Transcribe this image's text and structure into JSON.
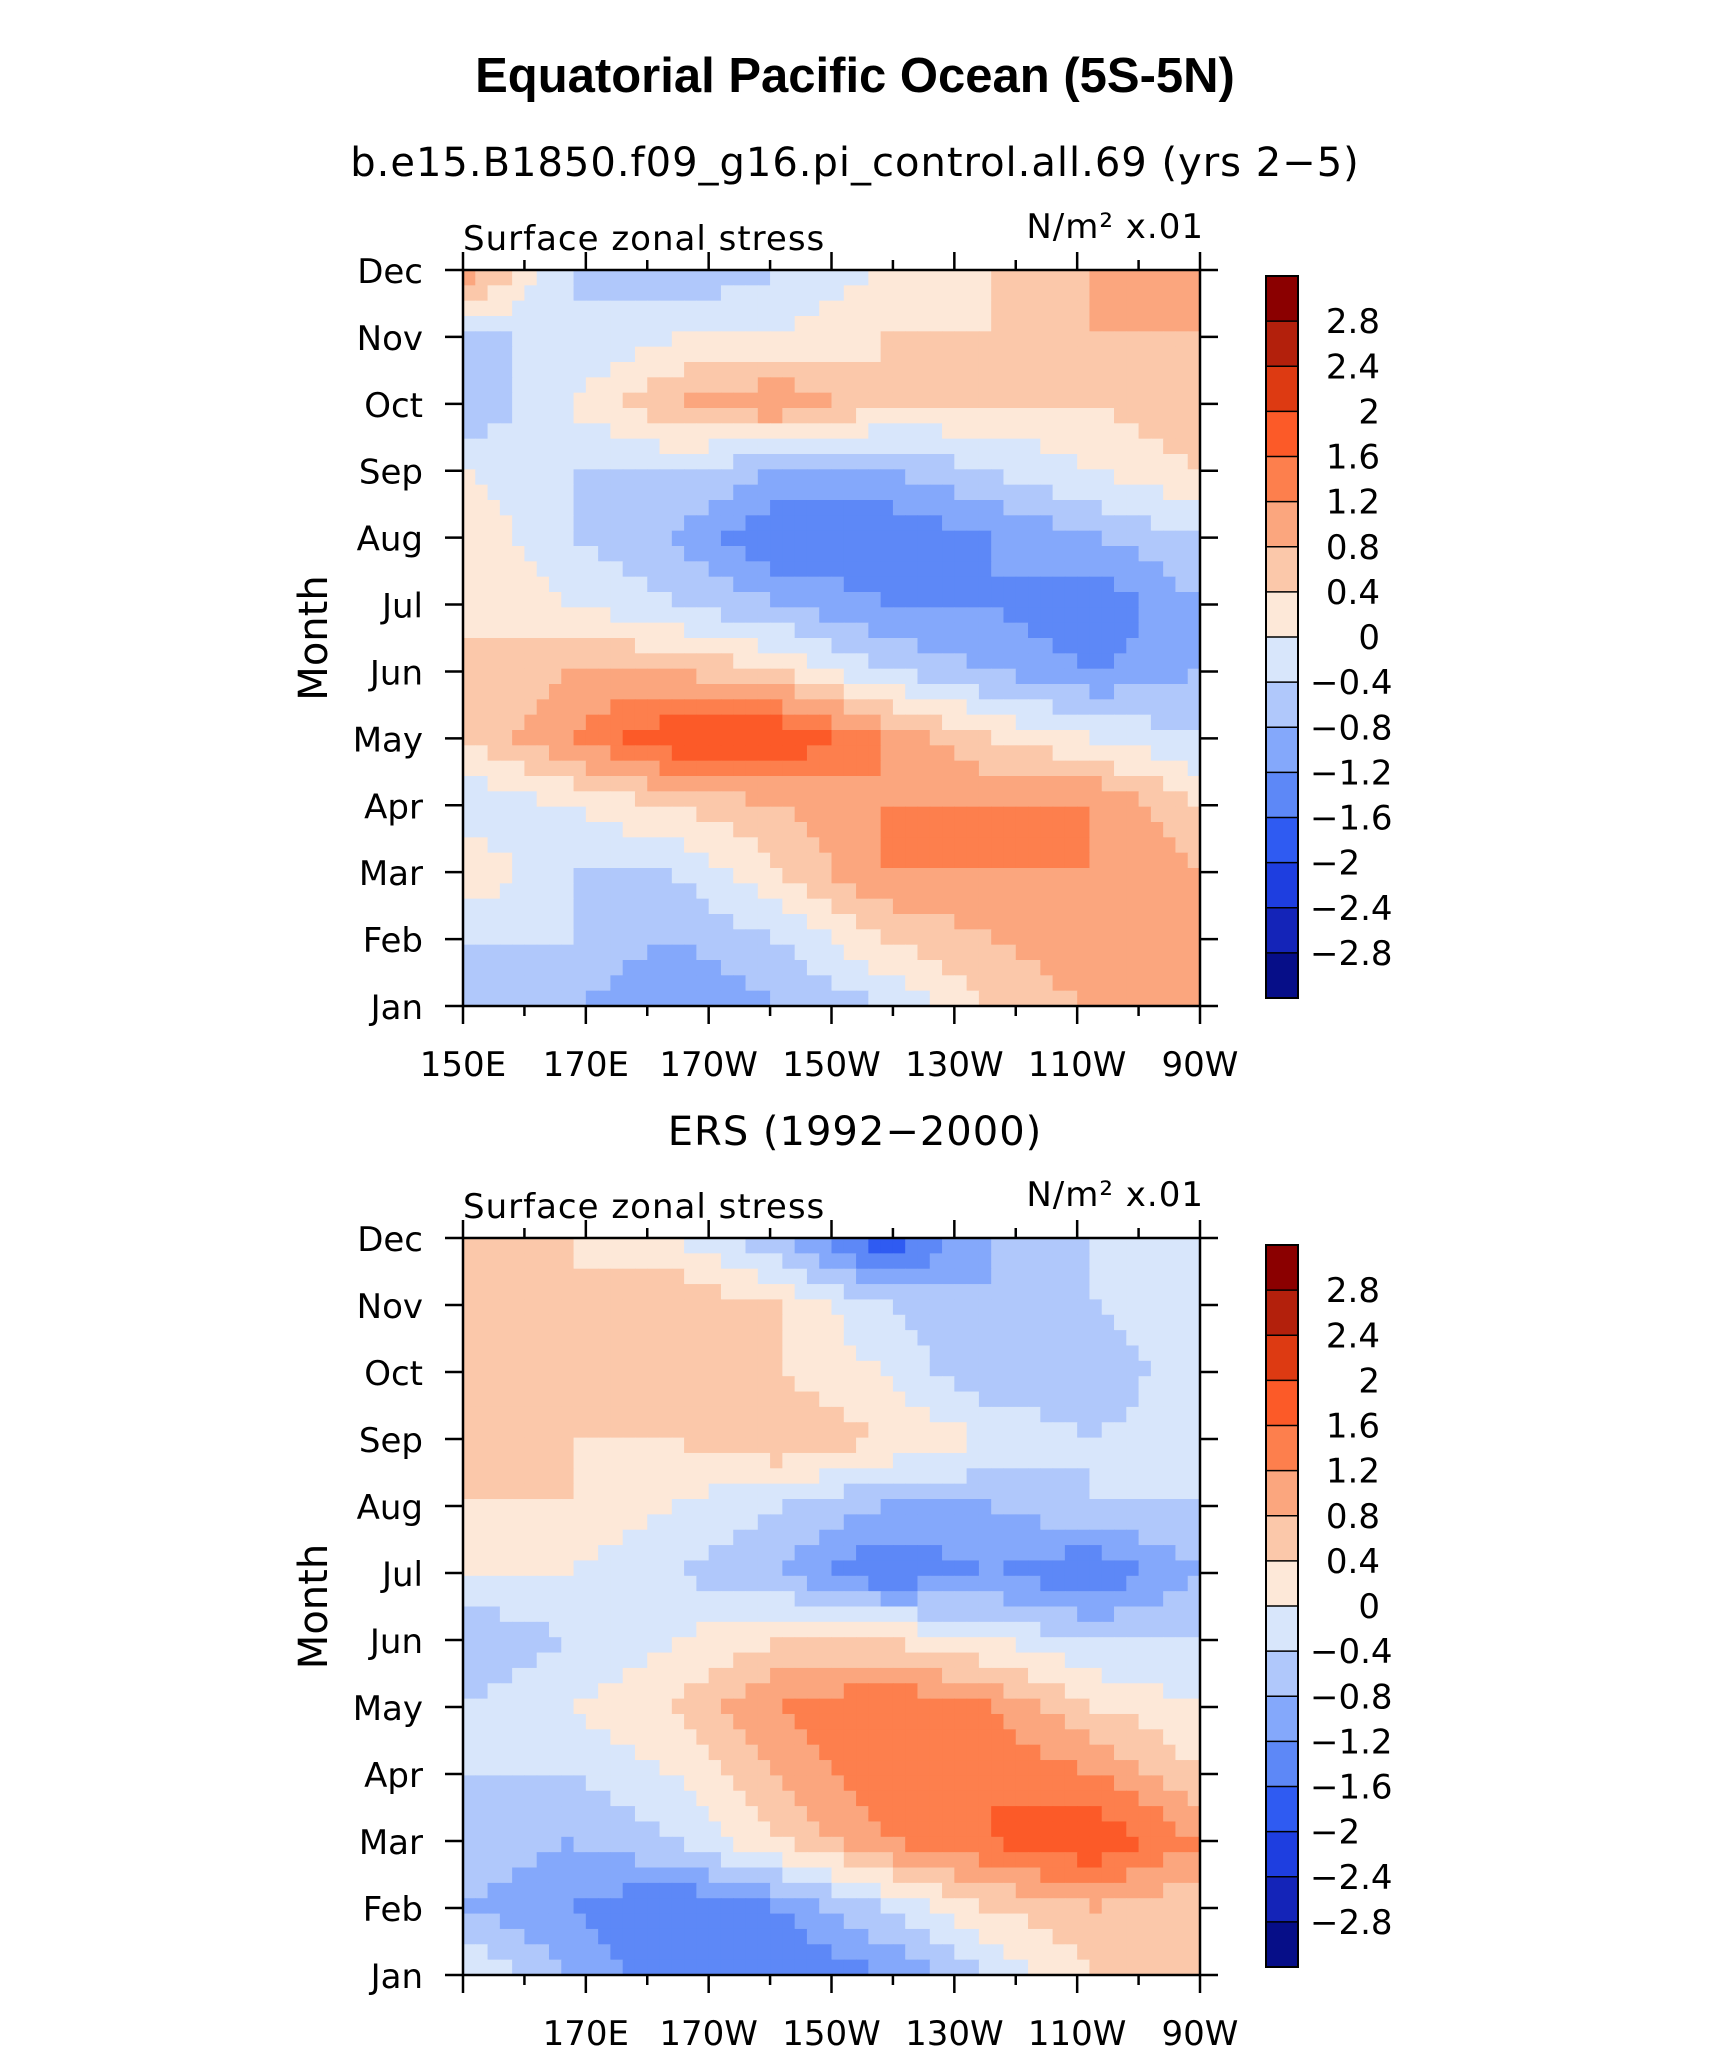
{
  "title": "Equatorial Pacific Ocean (5S-5N)",
  "chart_data": [
    {
      "type": "heatmap",
      "title": "b.e15.B1850.f09_g16.pi_control.all.69 (yrs 2−5)",
      "left_label": "Surface zonal stress",
      "right_label": "N/m² x.01",
      "xlabel": "",
      "ylabel": "Month",
      "x_ticks": [
        "150E",
        "170E",
        "170W",
        "150W",
        "130W",
        "110W",
        "90W"
      ],
      "y_ticks": [
        "Jan",
        "Feb",
        "Mar",
        "Apr",
        "May",
        "Jun",
        "Jul",
        "Aug",
        "Sep",
        "Oct",
        "Nov",
        "Dec"
      ],
      "lon_range": [
        150,
        270
      ],
      "colorbar_levels": [
        "2.8",
        "2.4",
        "2",
        "1.6",
        "1.2",
        "0.8",
        "0.4",
        "0",
        "−0.4",
        "−0.8",
        "−1.2",
        "−1.6",
        "−2",
        "−2.4",
        "−2.8"
      ],
      "z_approx": [
        [
          -0.4,
          -0.8,
          -1.2,
          -0.8,
          -0.4,
          0.4,
          0.8,
          0.8
        ],
        [
          -0.4,
          -0.4,
          -0.8,
          -0.4,
          0.4,
          0.8,
          1.2,
          0.8
        ],
        [
          0.4,
          -0.4,
          -0.4,
          0.4,
          1.2,
          1.2,
          1.2,
          0.8
        ],
        [
          -0.4,
          0.0,
          0.4,
          0.8,
          1.2,
          1.2,
          1.2,
          0.4
        ],
        [
          0.4,
          1.2,
          2.0,
          2.0,
          1.2,
          0.4,
          0.0,
          -0.4
        ],
        [
          0.4,
          0.8,
          0.8,
          0.4,
          -0.4,
          -0.8,
          -1.2,
          -0.8
        ],
        [
          0.4,
          0.0,
          -0.4,
          -0.8,
          -1.2,
          -1.2,
          -1.6,
          -0.8
        ],
        [
          0.4,
          -0.4,
          -0.8,
          -1.6,
          -1.6,
          -1.2,
          -0.8,
          -0.4
        ],
        [
          0.0,
          -0.4,
          -0.4,
          -0.8,
          -0.8,
          -0.4,
          0.0,
          0.4
        ],
        [
          -0.8,
          0.0,
          0.8,
          1.2,
          0.4,
          0.4,
          0.4,
          0.8
        ],
        [
          -0.4,
          -0.4,
          0.0,
          0.0,
          0.4,
          0.4,
          0.8,
          0.8
        ],
        [
          1.2,
          -0.4,
          -0.8,
          -0.4,
          0.0,
          0.4,
          0.8,
          0.8
        ]
      ]
    },
    {
      "type": "heatmap",
      "title": "ERS (1992−2000)",
      "left_label": "Surface zonal stress",
      "right_label": "N/m² x.01",
      "xlabel": "",
      "ylabel": "Month",
      "x_ticks": [
        "170E",
        "170W",
        "150W",
        "130W",
        "110W",
        "90W"
      ],
      "y_ticks": [
        "Jan",
        "Feb",
        "Mar",
        "Apr",
        "May",
        "Jun",
        "Jul",
        "Aug",
        "Sep",
        "Oct",
        "Nov",
        "Dec"
      ],
      "lon_range": [
        150,
        270
      ],
      "colorbar_levels": [
        "2.8",
        "2.4",
        "2",
        "1.6",
        "1.2",
        "0.8",
        "0.4",
        "0",
        "−0.4",
        "−0.8",
        "−1.2",
        "−1.6",
        "−2",
        "−2.4",
        "−2.8"
      ],
      "z_approx": [
        [
          0.0,
          -0.8,
          -1.6,
          -1.6,
          -1.2,
          -0.4,
          0.4,
          0.4
        ],
        [
          -0.8,
          -1.2,
          -1.6,
          -1.2,
          -0.4,
          0.4,
          0.8,
          0.4
        ],
        [
          -0.4,
          -0.8,
          -0.4,
          0.4,
          1.2,
          1.6,
          2.0,
          1.2
        ],
        [
          -0.4,
          -0.4,
          0.0,
          0.8,
          1.6,
          1.6,
          1.2,
          0.4
        ],
        [
          -0.4,
          0.0,
          0.4,
          1.2,
          1.6,
          1.2,
          0.4,
          0.0
        ],
        [
          -0.8,
          -0.4,
          0.0,
          0.4,
          0.4,
          0.0,
          -0.4,
          -0.4
        ],
        [
          0.0,
          0.0,
          -0.4,
          -0.8,
          -1.6,
          -1.2,
          -1.6,
          -0.8
        ],
        [
          0.4,
          0.4,
          0.0,
          -0.4,
          -0.8,
          -0.8,
          -0.4,
          -0.4
        ],
        [
          0.4,
          0.4,
          0.4,
          0.8,
          0.4,
          0.0,
          -0.4,
          0.0
        ],
        [
          0.4,
          0.4,
          0.4,
          0.4,
          0.0,
          -0.8,
          -0.8,
          0.0
        ],
        [
          0.4,
          0.4,
          0.8,
          0.4,
          -0.4,
          -0.8,
          -0.4,
          0.0
        ],
        [
          0.4,
          0.4,
          0.0,
          -0.8,
          -2.0,
          -0.8,
          -0.4,
          0.0
        ]
      ]
    }
  ],
  "colors": {
    "levels_high_to_low": [
      "#8b0000",
      "#b3200c",
      "#dd3a12",
      "#fc5a28",
      "#fd7f4d",
      "#fba67e",
      "#fbc8aa",
      "#fde8d8",
      "#d8e6fb",
      "#b0c8fb",
      "#84a8fb",
      "#5d88f7",
      "#2f5bf2",
      "#1e3ee0",
      "#1424b8",
      "#060e88"
    ]
  }
}
